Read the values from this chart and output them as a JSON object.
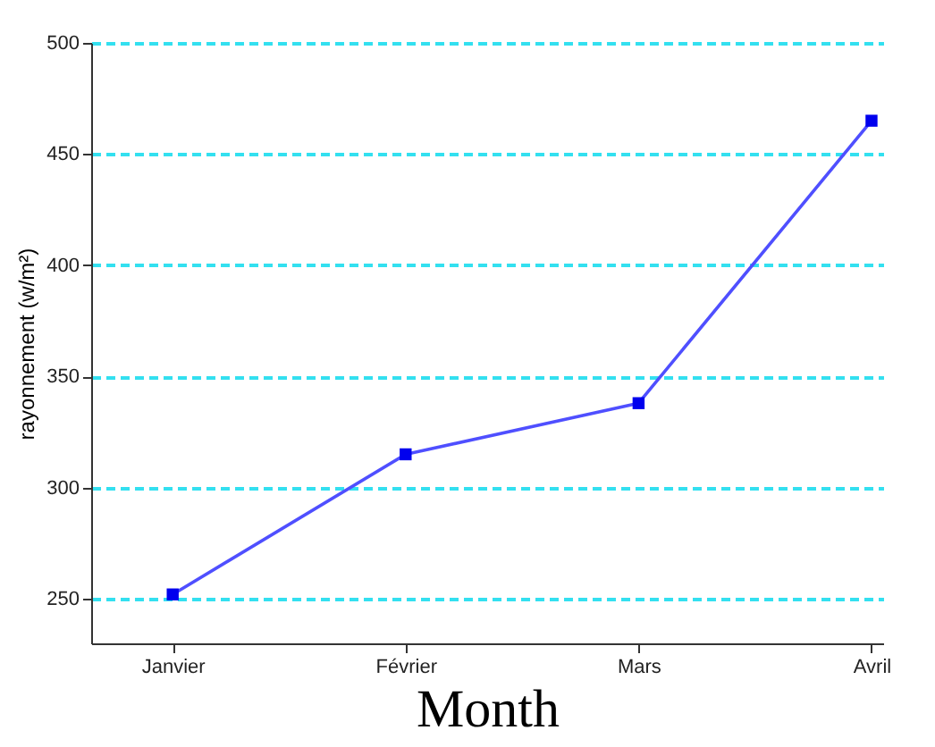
{
  "chart_data": {
    "type": "line",
    "xlabel": "Month",
    "ylabel": "rayonnement (w/m²)",
    "categories": [
      "Janvier",
      "Février",
      "Mars",
      "Avril"
    ],
    "series": [
      {
        "color": "#4f4fff",
        "values": [
          252,
          315,
          338,
          465
        ]
      }
    ],
    "ylim": [
      230,
      500
    ],
    "yticks": [
      250,
      300,
      350,
      400,
      450,
      500
    ],
    "grid": "y",
    "marker": "square",
    "line_style": "solid"
  }
}
